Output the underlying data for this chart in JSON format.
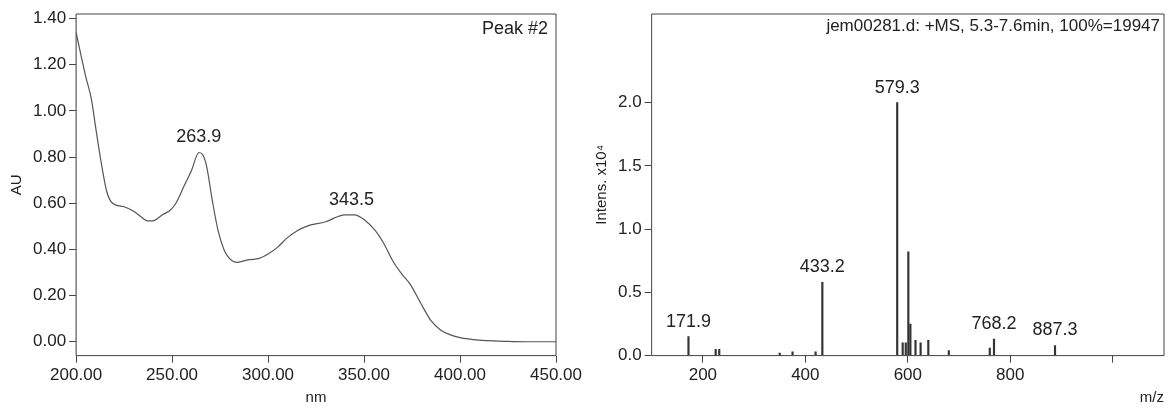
{
  "chart_data": [
    {
      "type": "line",
      "xlabel": "nm",
      "ylabel": "AU",
      "x": [
        200,
        205,
        208,
        210,
        213,
        216,
        219,
        225,
        230,
        234,
        237,
        240,
        245,
        249,
        252,
        256,
        260,
        264,
        266,
        268,
        271,
        274,
        277,
        280,
        284,
        290,
        295,
        300,
        305,
        310,
        315,
        320,
        330,
        340,
        345,
        350,
        356,
        360,
        365,
        370,
        374,
        380,
        385,
        390,
        395,
        400,
        410,
        420,
        435,
        450
      ],
      "series": [
        {
          "color": "#555555",
          "values": [
            1.34,
            1.15,
            1.05,
            0.94,
            0.78,
            0.65,
            0.6,
            0.585,
            0.565,
            0.54,
            0.524,
            0.524,
            0.55,
            0.57,
            0.6,
            0.67,
            0.74,
            0.82,
            0.81,
            0.76,
            0.61,
            0.48,
            0.4,
            0.36,
            0.344,
            0.356,
            0.36,
            0.38,
            0.41,
            0.45,
            0.48,
            0.5,
            0.52,
            0.55,
            0.55,
            0.53,
            0.48,
            0.43,
            0.35,
            0.29,
            0.25,
            0.16,
            0.09,
            0.05,
            0.03,
            0.018,
            0.007,
            0.003,
            0,
            0
          ]
        }
      ],
      "xlim": [
        200,
        450
      ],
      "xticks": [
        {
          "value": 200,
          "label": "200.00"
        },
        {
          "value": 250,
          "label": "250.00"
        },
        {
          "value": 300,
          "label": "300.00"
        },
        {
          "value": 350,
          "label": "350.00"
        },
        {
          "value": 400,
          "label": "400.00"
        },
        {
          "value": 450,
          "label": "450.00"
        }
      ],
      "ylim": [
        -0.06,
        1.42
      ],
      "yticks": [
        {
          "value": 0,
          "label": "0.00"
        },
        {
          "value": 0.2,
          "label": "0.20"
        },
        {
          "value": 0.4,
          "label": "0.40"
        },
        {
          "value": 0.6,
          "label": "0.60"
        },
        {
          "value": 0.8,
          "label": "0.80"
        },
        {
          "value": 1,
          "label": "1.00"
        },
        {
          "value": 1.2,
          "label": "1.20"
        },
        {
          "value": 1.4,
          "label": "1.40"
        }
      ],
      "annotations": [
        "Peak #2",
        {
          "text": "263.9",
          "x": 263.9,
          "y": 0.82
        },
        {
          "text": "343.5",
          "x": 343.5,
          "y": 0.55
        }
      ],
      "grid": false
    },
    {
      "type": "bar",
      "title": "jem00281.d: +MS, 5.3-7.6min, 100%=19947",
      "xlabel": "m/z",
      "ylabel": "Intens. x10⁴",
      "x": [
        171.9,
        225,
        232,
        350,
        375,
        420,
        433.2,
        579.3,
        590,
        596,
        601,
        605,
        615,
        625,
        640,
        680,
        760,
        768.2,
        887.3
      ],
      "series": [
        {
          "color": "#333333",
          "values": [
            0.15,
            0.05,
            0.05,
            0.02,
            0.03,
            0.03,
            0.58,
            2.0,
            0.1,
            0.1,
            0.82,
            0.25,
            0.12,
            0.1,
            0.12,
            0.04,
            0.06,
            0.13,
            0.08
          ]
        }
      ],
      "xlim": [
        100,
        1100
      ],
      "xticks": [
        200,
        400,
        600,
        800,
        {
          "value": 1000,
          "label": null
        }
      ],
      "ylim": [
        0,
        2.7
      ],
      "yticks": [
        {
          "value": 0,
          "label": "0.0"
        },
        {
          "value": 0.5,
          "label": "0.5"
        },
        {
          "value": 1,
          "label": "1.0"
        },
        {
          "value": 1.5,
          "label": "1.5"
        },
        {
          "value": 2,
          "label": "2.0"
        }
      ],
      "annotations": [
        {
          "text": "171.9",
          "x": 171.9,
          "y": 0.15
        },
        {
          "text": "433.2",
          "x": 433.2,
          "y": 0.58
        },
        {
          "text": "579.3",
          "x": 579.3,
          "y": 2.0
        },
        {
          "text": "768.2",
          "x": 768.2,
          "y": 0.13
        },
        {
          "text": "887.3",
          "x": 887.3,
          "y": 0.08
        }
      ],
      "grid": false
    }
  ]
}
